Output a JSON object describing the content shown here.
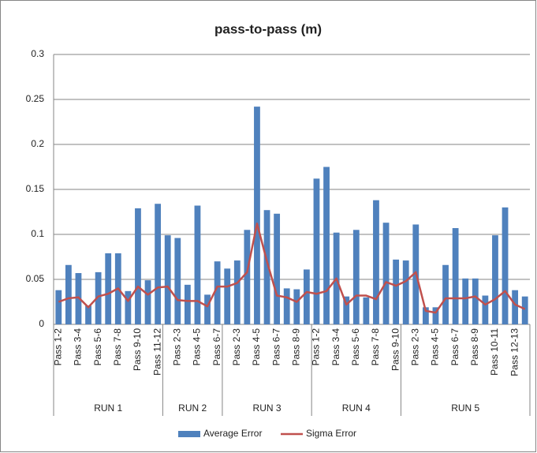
{
  "chart_data": {
    "type": "bar_line",
    "title": "pass-to-pass (m)",
    "categories": [
      "Pass 1-2",
      null,
      "Pass 3-4",
      null,
      "Pass 5-6",
      null,
      "Pass 7-8",
      null,
      "Pass 9-10",
      null,
      "Pass 11-12",
      null,
      "Pass 2-3",
      null,
      "Pass 4-5",
      null,
      "Pass 6-7",
      null,
      "Pass 2-3",
      null,
      "Pass 4-5",
      null,
      "Pass 6-7",
      null,
      "Pass 8-9",
      null,
      "Pass 1-2",
      null,
      "Pass 3-4",
      null,
      "Pass 5-6",
      null,
      "Pass 7-8",
      null,
      "Pass 9-10",
      null,
      "Pass 2-3",
      null,
      "Pass 4-5",
      null,
      "Pass 6-7",
      null,
      "Pass 8-9",
      null,
      "Pass 10-11",
      null,
      "Pass 12-13",
      null
    ],
    "groups": [
      {
        "label": "RUN 1",
        "count": 11
      },
      {
        "label": "RUN 2",
        "count": 6
      },
      {
        "label": "RUN 3",
        "count": 9
      },
      {
        "label": "RUN 4",
        "count": 9
      },
      {
        "label": "RUN 5",
        "count": 13
      }
    ],
    "series": [
      {
        "name": "Average Error",
        "type": "bar",
        "color": "#4f81bd",
        "values": [
          0.038,
          0.066,
          0.057,
          0.021,
          0.058,
          0.079,
          0.079,
          0.037,
          0.129,
          0.049,
          0.134,
          0.099,
          0.096,
          0.044,
          0.132,
          0.033,
          0.07,
          0.062,
          0.071,
          0.105,
          0.242,
          0.127,
          0.123,
          0.04,
          0.039,
          0.061,
          0.162,
          0.175,
          0.102,
          0.031,
          0.105,
          0.03,
          0.138,
          0.113,
          0.072,
          0.071,
          0.111,
          0.019,
          0.019,
          0.066,
          0.107,
          0.051,
          0.051,
          0.032,
          0.099,
          0.13,
          0.038,
          0.031
        ]
      },
      {
        "name": "Sigma Error",
        "type": "line",
        "color": "#c0504d",
        "values": [
          0.025,
          0.029,
          0.03,
          0.019,
          0.031,
          0.034,
          0.04,
          0.026,
          0.042,
          0.033,
          0.041,
          0.042,
          0.027,
          0.026,
          0.026,
          0.02,
          0.042,
          0.042,
          0.046,
          0.058,
          0.112,
          0.07,
          0.032,
          0.03,
          0.025,
          0.036,
          0.034,
          0.037,
          0.051,
          0.022,
          0.032,
          0.032,
          0.028,
          0.047,
          0.043,
          0.048,
          0.058,
          0.015,
          0.013,
          0.029,
          0.029,
          0.029,
          0.031,
          0.022,
          0.028,
          0.037,
          0.022,
          0.017
        ]
      }
    ],
    "ylim": [
      0,
      0.3
    ],
    "yticks": [
      0,
      0.05,
      0.1,
      0.15,
      0.2,
      0.25,
      0.3
    ],
    "grid": true,
    "legend": "bottom"
  }
}
